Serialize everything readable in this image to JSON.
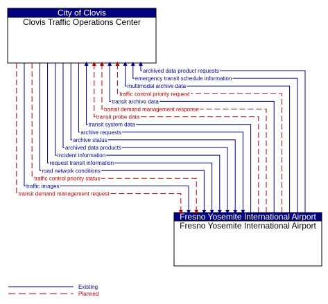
{
  "colors": {
    "existing": "#00008b",
    "planned": "#b00000",
    "header": "#000080"
  },
  "source": {
    "owner": "City of Clovis",
    "name": "Clovis Traffic Operations Center"
  },
  "target": {
    "owner": "Fresno Yosemite International Airport",
    "name": "Fresno Yosemite International Airport"
  },
  "flows": [
    {
      "label": "archived data product requests",
      "status": "existing",
      "direction": "to-source"
    },
    {
      "label": "emergency transit schedule information",
      "status": "existing",
      "direction": "to-source"
    },
    {
      "label": "multimodal archive data",
      "status": "existing",
      "direction": "to-source"
    },
    {
      "label": "traffic control priority request",
      "status": "planned",
      "direction": "to-source"
    },
    {
      "label": "transit archive data",
      "status": "existing",
      "direction": "to-source"
    },
    {
      "label": "transit demand management response",
      "status": "planned",
      "direction": "to-source"
    },
    {
      "label": "transit probe data",
      "status": "planned",
      "direction": "to-source"
    },
    {
      "label": "transit system data",
      "status": "existing",
      "direction": "to-source"
    },
    {
      "label": "archive requests",
      "status": "existing",
      "direction": "to-target"
    },
    {
      "label": "archive status",
      "status": "existing",
      "direction": "to-target"
    },
    {
      "label": "archived data products",
      "status": "existing",
      "direction": "to-target"
    },
    {
      "label": "incident information",
      "status": "existing",
      "direction": "to-target"
    },
    {
      "label": "request transit information",
      "status": "existing",
      "direction": "to-target"
    },
    {
      "label": "road network conditions",
      "status": "existing",
      "direction": "to-target"
    },
    {
      "label": "traffic control priority status",
      "status": "planned",
      "direction": "to-target"
    },
    {
      "label": "traffic images",
      "status": "existing",
      "direction": "to-target"
    },
    {
      "label": "transit demand management request",
      "status": "planned",
      "direction": "to-target"
    }
  ],
  "legend": {
    "existing": "Existing",
    "planned": "Planned"
  }
}
